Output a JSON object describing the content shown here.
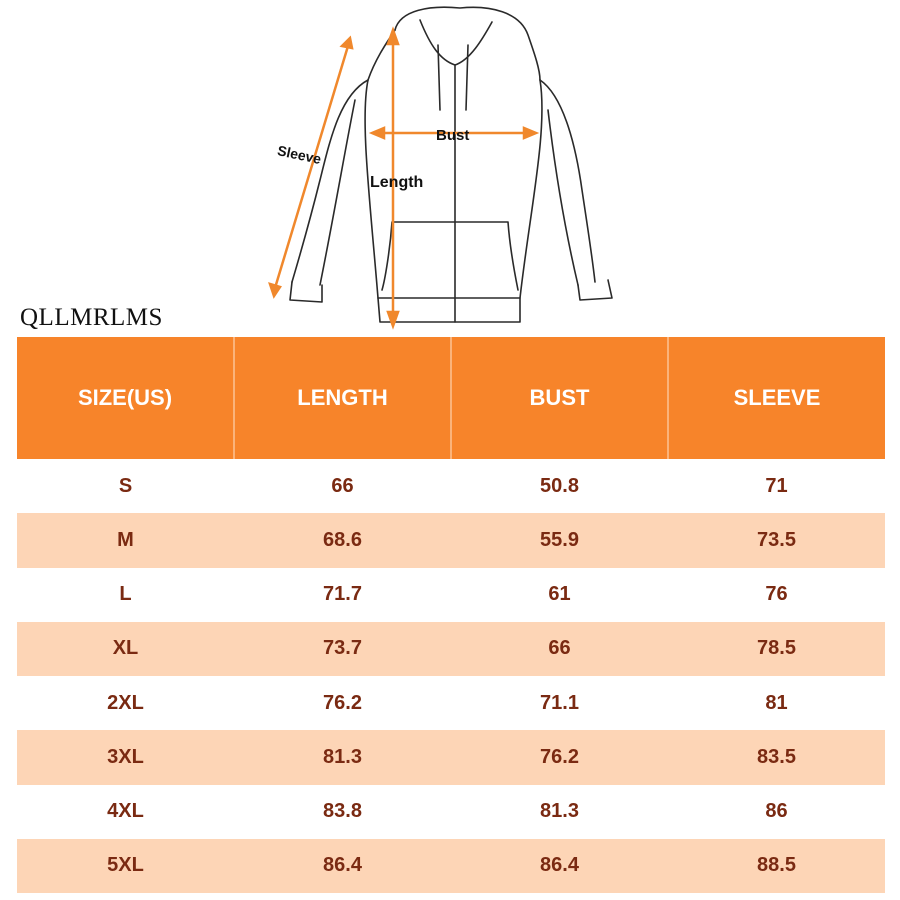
{
  "illustration": {
    "labels": {
      "sleeve": "Sleeve",
      "length": "Length",
      "bust": "Bust"
    },
    "arrow_color": "#f0882c",
    "icon": "zip-hoodie-line-drawing"
  },
  "brand": "QLLMRLMS",
  "table": {
    "headers": [
      "SIZE(US)",
      "LENGTH",
      "BUST",
      "SLEEVE"
    ],
    "header_color": "#f7842a",
    "stripe_color": "#fdd5b6",
    "text_color": "#7a2a12",
    "rows": [
      [
        "S",
        "66",
        "50.8",
        "71"
      ],
      [
        "M",
        "68.6",
        "55.9",
        "73.5"
      ],
      [
        "L",
        "71.7",
        "61",
        "76"
      ],
      [
        "XL",
        "73.7",
        "66",
        "78.5"
      ],
      [
        "2XL",
        "76.2",
        "71.1",
        "81"
      ],
      [
        "3XL",
        "81.3",
        "76.2",
        "83.5"
      ],
      [
        "4XL",
        "83.8",
        "81.3",
        "86"
      ],
      [
        "5XL",
        "86.4",
        "86.4",
        "88.5"
      ]
    ]
  }
}
